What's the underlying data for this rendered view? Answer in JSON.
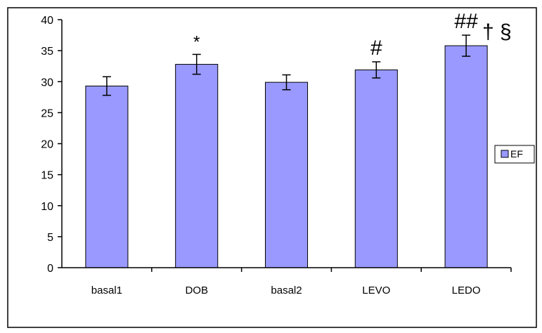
{
  "chart_data": {
    "type": "bar",
    "title": "",
    "xlabel": "",
    "ylabel": "",
    "categories": [
      "basal1",
      "DOB",
      "basal2",
      "LEVO",
      "LEDO"
    ],
    "series": [
      {
        "name": "EF",
        "values": [
          29.3,
          32.8,
          29.9,
          31.9,
          35.8
        ],
        "error": [
          1.5,
          1.6,
          1.2,
          1.3,
          1.7
        ],
        "annotations": [
          "",
          "*",
          "",
          "#",
          "##"
        ]
      }
    ],
    "extra_annotation": "† §",
    "ylim": [
      0,
      40
    ],
    "yticks": [
      0,
      5,
      10,
      15,
      20,
      25,
      30,
      35,
      40
    ],
    "grid": false,
    "legend_position": "right",
    "colors": {
      "bar_fill": "#9999ff",
      "bar_stroke": "#000000",
      "frame": "#000000",
      "background": "#ffffff"
    }
  }
}
